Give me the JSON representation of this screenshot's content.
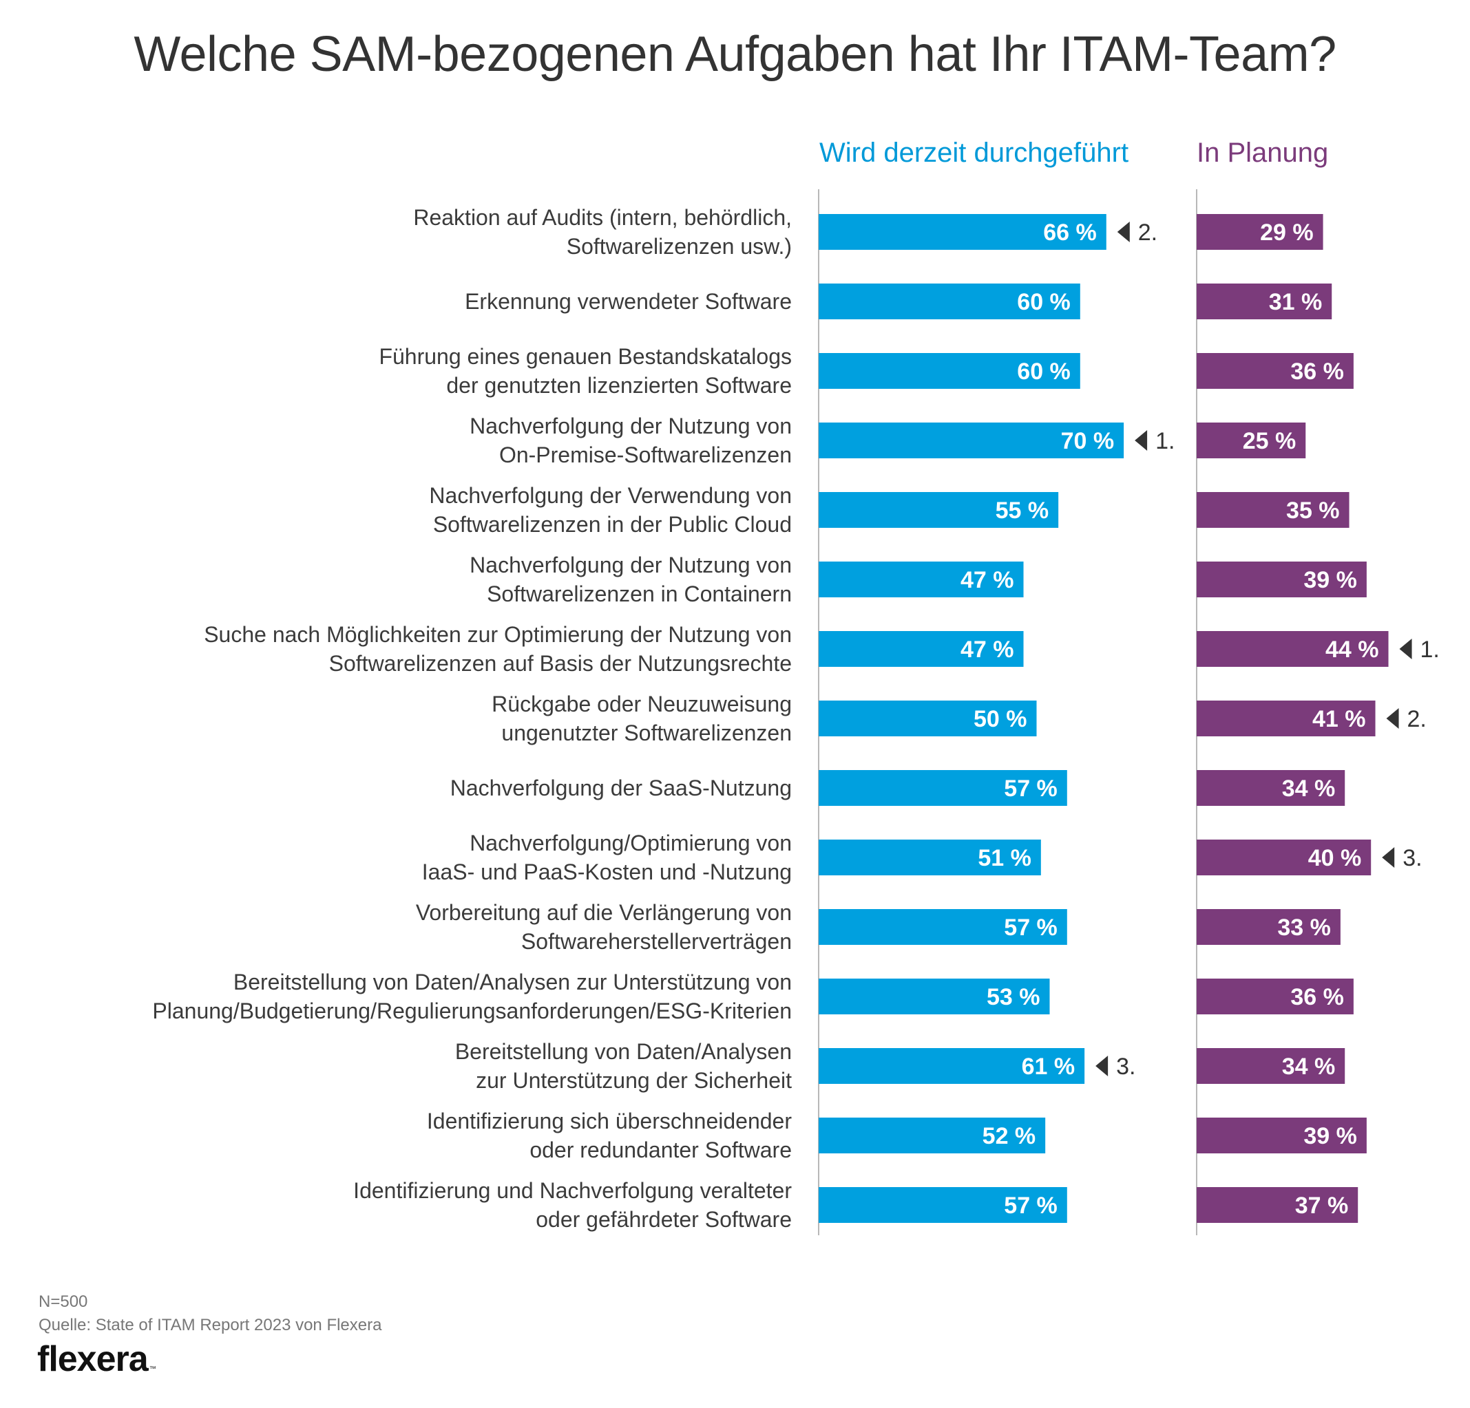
{
  "title": "Welche SAM-bezogenen Aufgaben hat Ihr ITAM-Team?",
  "colors": {
    "current": "#00a0df",
    "planned": "#7b3b7b",
    "label_text": "#3b3b3b",
    "axis": "#b8b8b8",
    "rank_marker": "#333333"
  },
  "chart_data": {
    "type": "bar",
    "orientation": "horizontal",
    "series": [
      {
        "name": "Wird derzeit durchgeführt",
        "values": [
          66,
          60,
          60,
          70,
          55,
          47,
          47,
          50,
          57,
          51,
          57,
          53,
          61,
          52,
          57
        ],
        "labels": [
          "66 %",
          "60 %",
          "60 %",
          "70 %",
          "55 %",
          "47 %",
          "47 %",
          "50 %",
          "57 %",
          "51 %",
          "57 %",
          "53 %",
          "61 %",
          "52 %",
          "57 %"
        ],
        "ranks": [
          {
            "index": 0,
            "label": "2."
          },
          {
            "index": 3,
            "label": "1."
          },
          {
            "index": 12,
            "label": "3."
          }
        ]
      },
      {
        "name": "In Planung",
        "values": [
          29,
          31,
          36,
          25,
          35,
          39,
          44,
          41,
          34,
          40,
          33,
          36,
          34,
          39,
          37
        ],
        "labels": [
          "29 %",
          "31 %",
          "36 %",
          "25 %",
          "35 %",
          "39 %",
          "44 %",
          "41 %",
          "34 %",
          "40 %",
          "33 %",
          "36 %",
          "34 %",
          "39 %",
          "37 %"
        ],
        "ranks": [
          {
            "index": 6,
            "label": "1."
          },
          {
            "index": 7,
            "label": "2."
          },
          {
            "index": 9,
            "label": "3."
          }
        ]
      }
    ],
    "categories": [
      [
        "Reaktion auf Audits (intern, behördlich,",
        "Softwarelizenzen usw.)"
      ],
      [
        "Erkennung verwendeter Software"
      ],
      [
        "Führung eines genauen Bestandskatalogs",
        "der genutzten lizenzierten Software"
      ],
      [
        "Nachverfolgung der Nutzung von",
        "On-Premise-Softwarelizenzen"
      ],
      [
        "Nachverfolgung der Verwendung von",
        "Softwarelizenzen in der Public Cloud"
      ],
      [
        "Nachverfolgung der Nutzung von",
        "Softwarelizenzen in Containern"
      ],
      [
        "Suche nach Möglichkeiten zur Optimierung der Nutzung von",
        "Softwarelizenzen auf Basis der Nutzungsrechte"
      ],
      [
        "Rückgabe oder Neuzuweisung",
        "ungenutzter Softwarelizenzen"
      ],
      [
        "Nachverfolgung der SaaS-Nutzung"
      ],
      [
        "Nachverfolgung/Optimierung von",
        "IaaS- und PaaS-Kosten und -Nutzung"
      ],
      [
        "Vorbereitung auf die Verlängerung von",
        "Softwareherstellerverträgen"
      ],
      [
        "Bereitstellung von Daten/Analysen zur Unterstützung von",
        "Planung/Budgetierung/Regulierungsanforderungen/ESG-Kriterien"
      ],
      [
        "Bereitstellung von Daten/Analysen",
        "zur Unterstützung der Sicherheit"
      ],
      [
        "Identifizierung sich überschneidender",
        "oder redundanter Software"
      ],
      [
        "Identifizierung und Nachverfolgung veralteter",
        "oder gefährdeter Software"
      ]
    ],
    "xlim": [
      0,
      100
    ]
  },
  "footer": {
    "n": "N=500",
    "source": "Quelle: State of ITAM Report 2023 von Flexera",
    "logo": "flexera",
    "logo_tm": "™"
  }
}
